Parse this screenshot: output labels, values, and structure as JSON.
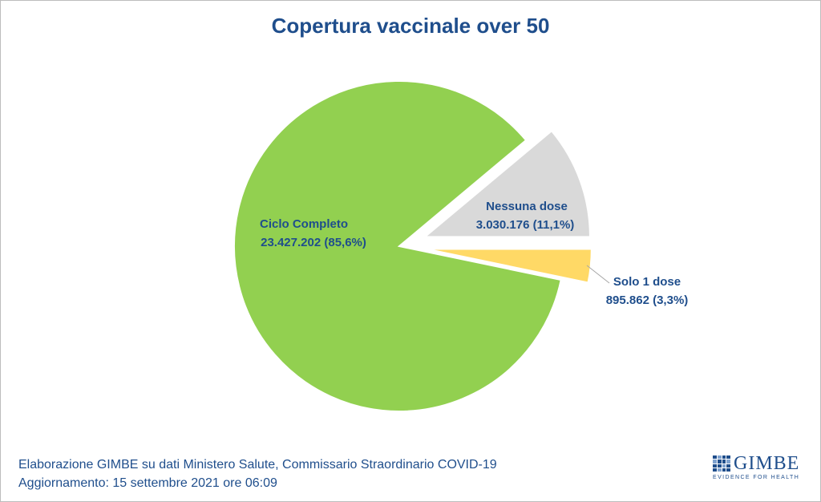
{
  "chart_data": {
    "type": "pie",
    "title": "Copertura vaccinale over 50",
    "slices": [
      {
        "label": "Ciclo Completo",
        "value": 23427202,
        "value_text": "23.427.202 (85,6%)",
        "percent": 85.6,
        "color": "#92d050",
        "exploded": false
      },
      {
        "label": "Nessuna dose",
        "value": 3030176,
        "value_text": "3.030.176 (11,1%)",
        "percent": 11.1,
        "color": "#d9d9d9",
        "exploded": true
      },
      {
        "label": "Solo 1 dose",
        "value": 895862,
        "value_text": "895.862 (3,3%)",
        "percent": 3.3,
        "color": "#ffd966",
        "exploded": true
      }
    ],
    "label_color": "#1f4e8c"
  },
  "footer": {
    "line1": "Elaborazione GIMBE su dati Ministero Salute, Commissario Straordinario COVID-19",
    "line2": "Aggiornamento: 15 settembre 2021 ore 06:09"
  },
  "logo": {
    "word": "GIMBE",
    "tagline": "EVIDENCE FOR HEALTH"
  }
}
